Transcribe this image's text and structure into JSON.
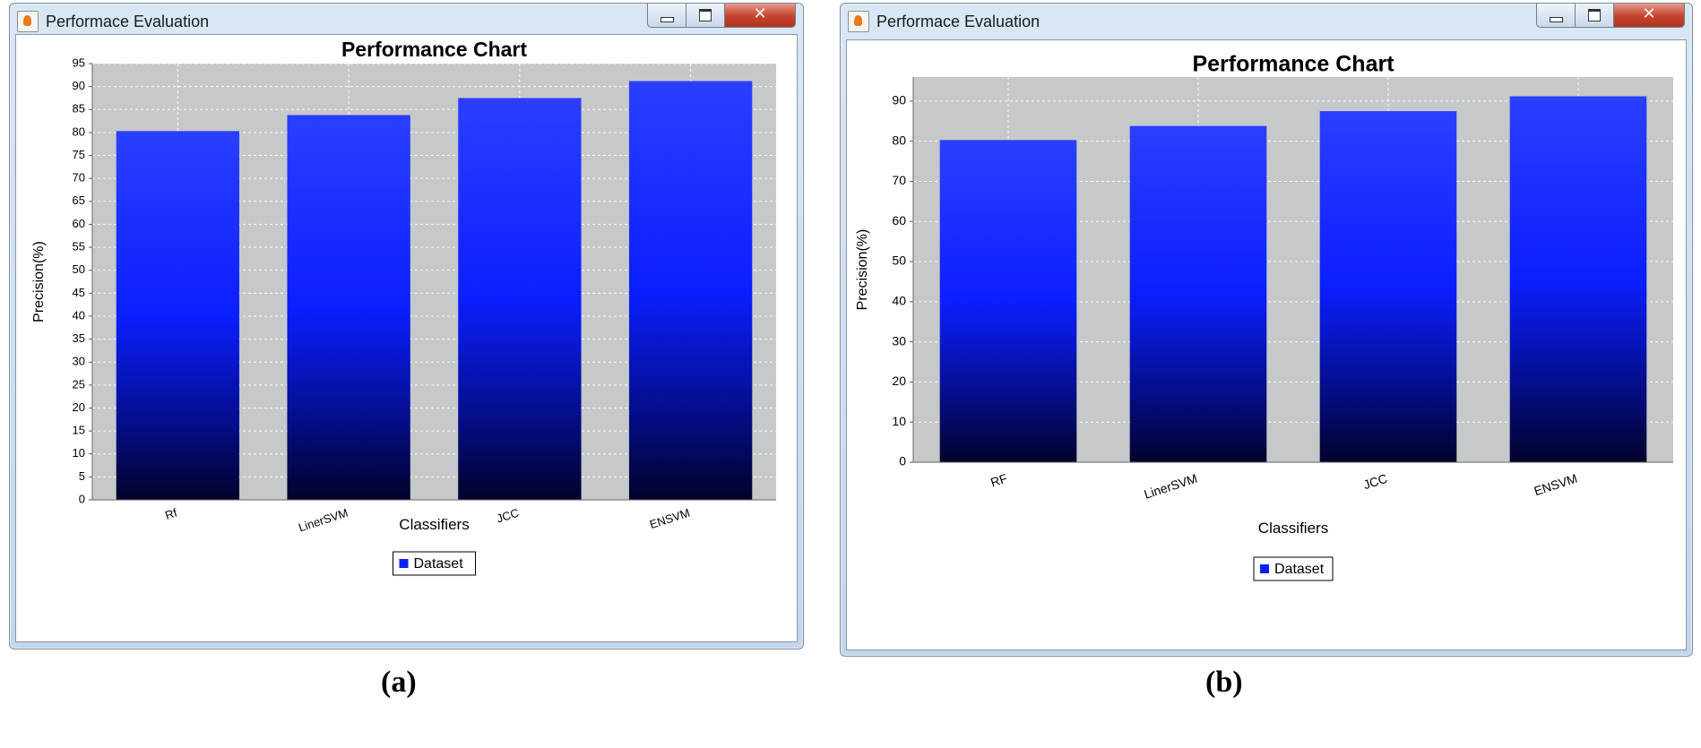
{
  "windows": [
    {
      "title": "Performace Evaluation",
      "sub_label": "(a)",
      "legend_label": "Dataset",
      "bar_color": "#2a3fff",
      "plot_bg": "#c6c9c9"
    },
    {
      "title": "Performace Evaluation",
      "sub_label": "(b)",
      "legend_label": "Dataset",
      "bar_color": "#2a3fff",
      "plot_bg": "#c6c9c9"
    }
  ],
  "chart_data": [
    {
      "type": "bar",
      "title": "Performance Chart",
      "xlabel": "Classifiers",
      "ylabel": "Precision(%)",
      "categories": [
        "Rf",
        "LinerSVM",
        "JCC",
        "ENSVM"
      ],
      "series": [
        {
          "name": "Dataset",
          "values": [
            80.3,
            83.8,
            87.5,
            91.2
          ]
        }
      ],
      "ylim": [
        0,
        95
      ],
      "yticks": [
        0,
        5,
        10,
        15,
        20,
        25,
        30,
        35,
        40,
        45,
        50,
        55,
        60,
        65,
        70,
        75,
        80,
        85,
        90,
        95
      ],
      "grid": true,
      "legend": "bottom"
    },
    {
      "type": "bar",
      "title": "Performance Chart",
      "xlabel": "Classifiers",
      "ylabel": "Precision(%)",
      "categories": [
        "RF",
        "LinerSVM",
        "JCC",
        "ENSVM"
      ],
      "series": [
        {
          "name": "Dataset",
          "values": [
            80.3,
            83.8,
            87.5,
            91.2
          ]
        }
      ],
      "ylim": [
        0,
        96
      ],
      "yticks": [
        0,
        10,
        20,
        30,
        40,
        50,
        60,
        70,
        80,
        90
      ],
      "grid": true,
      "legend": "bottom"
    }
  ]
}
